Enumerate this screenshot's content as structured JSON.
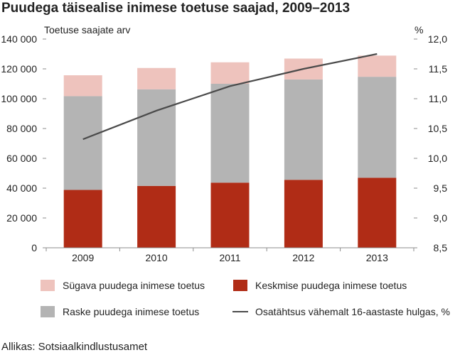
{
  "title": "Puudega täisealise inimese toetuse saajad, 2009–2013",
  "source": "Allikas: Sotsiaalkindlustusamet",
  "colors": {
    "sugava": "#eec3bd",
    "keskmise": "#b02c16",
    "raske": "#b4b4b4",
    "line": "#4a4a4a",
    "axis": "#8c8c8c"
  },
  "chart_data": {
    "type": "bar",
    "stacked": true,
    "categories": [
      "2009",
      "2010",
      "2011",
      "2012",
      "2013"
    ],
    "series": [
      {
        "name": "Keskmise puudega inimese toetus",
        "values": [
          38800,
          41500,
          43700,
          45600,
          47000
        ]
      },
      {
        "name": "Raske puudega inimese toetus",
        "values": [
          62900,
          64800,
          66300,
          67300,
          67700
        ]
      },
      {
        "name": "Sügava puudega inimese toetus",
        "values": [
          14000,
          14300,
          14400,
          14000,
          14200
        ]
      }
    ],
    "line_series": {
      "name": "Osatähtsus vähemalt 16-aastaste hulgas, %",
      "values": [
        10.32,
        10.8,
        11.21,
        11.5,
        11.75
      ]
    },
    "ylabel": "Toetuse saajate arv",
    "ylim": [
      0,
      140000
    ],
    "yticks": [
      "0",
      "20 000",
      "40 000",
      "60 000",
      "80 000",
      "100 000",
      "120 000",
      "140 000"
    ],
    "y2label": "%",
    "y2lim": [
      8.5,
      12.0
    ],
    "y2ticks": [
      "8,5",
      "9,0",
      "9,5",
      "10,0",
      "10,5",
      "11,0",
      "11,5",
      "12,0"
    ],
    "grid": false,
    "legend_placement": "bottom"
  }
}
